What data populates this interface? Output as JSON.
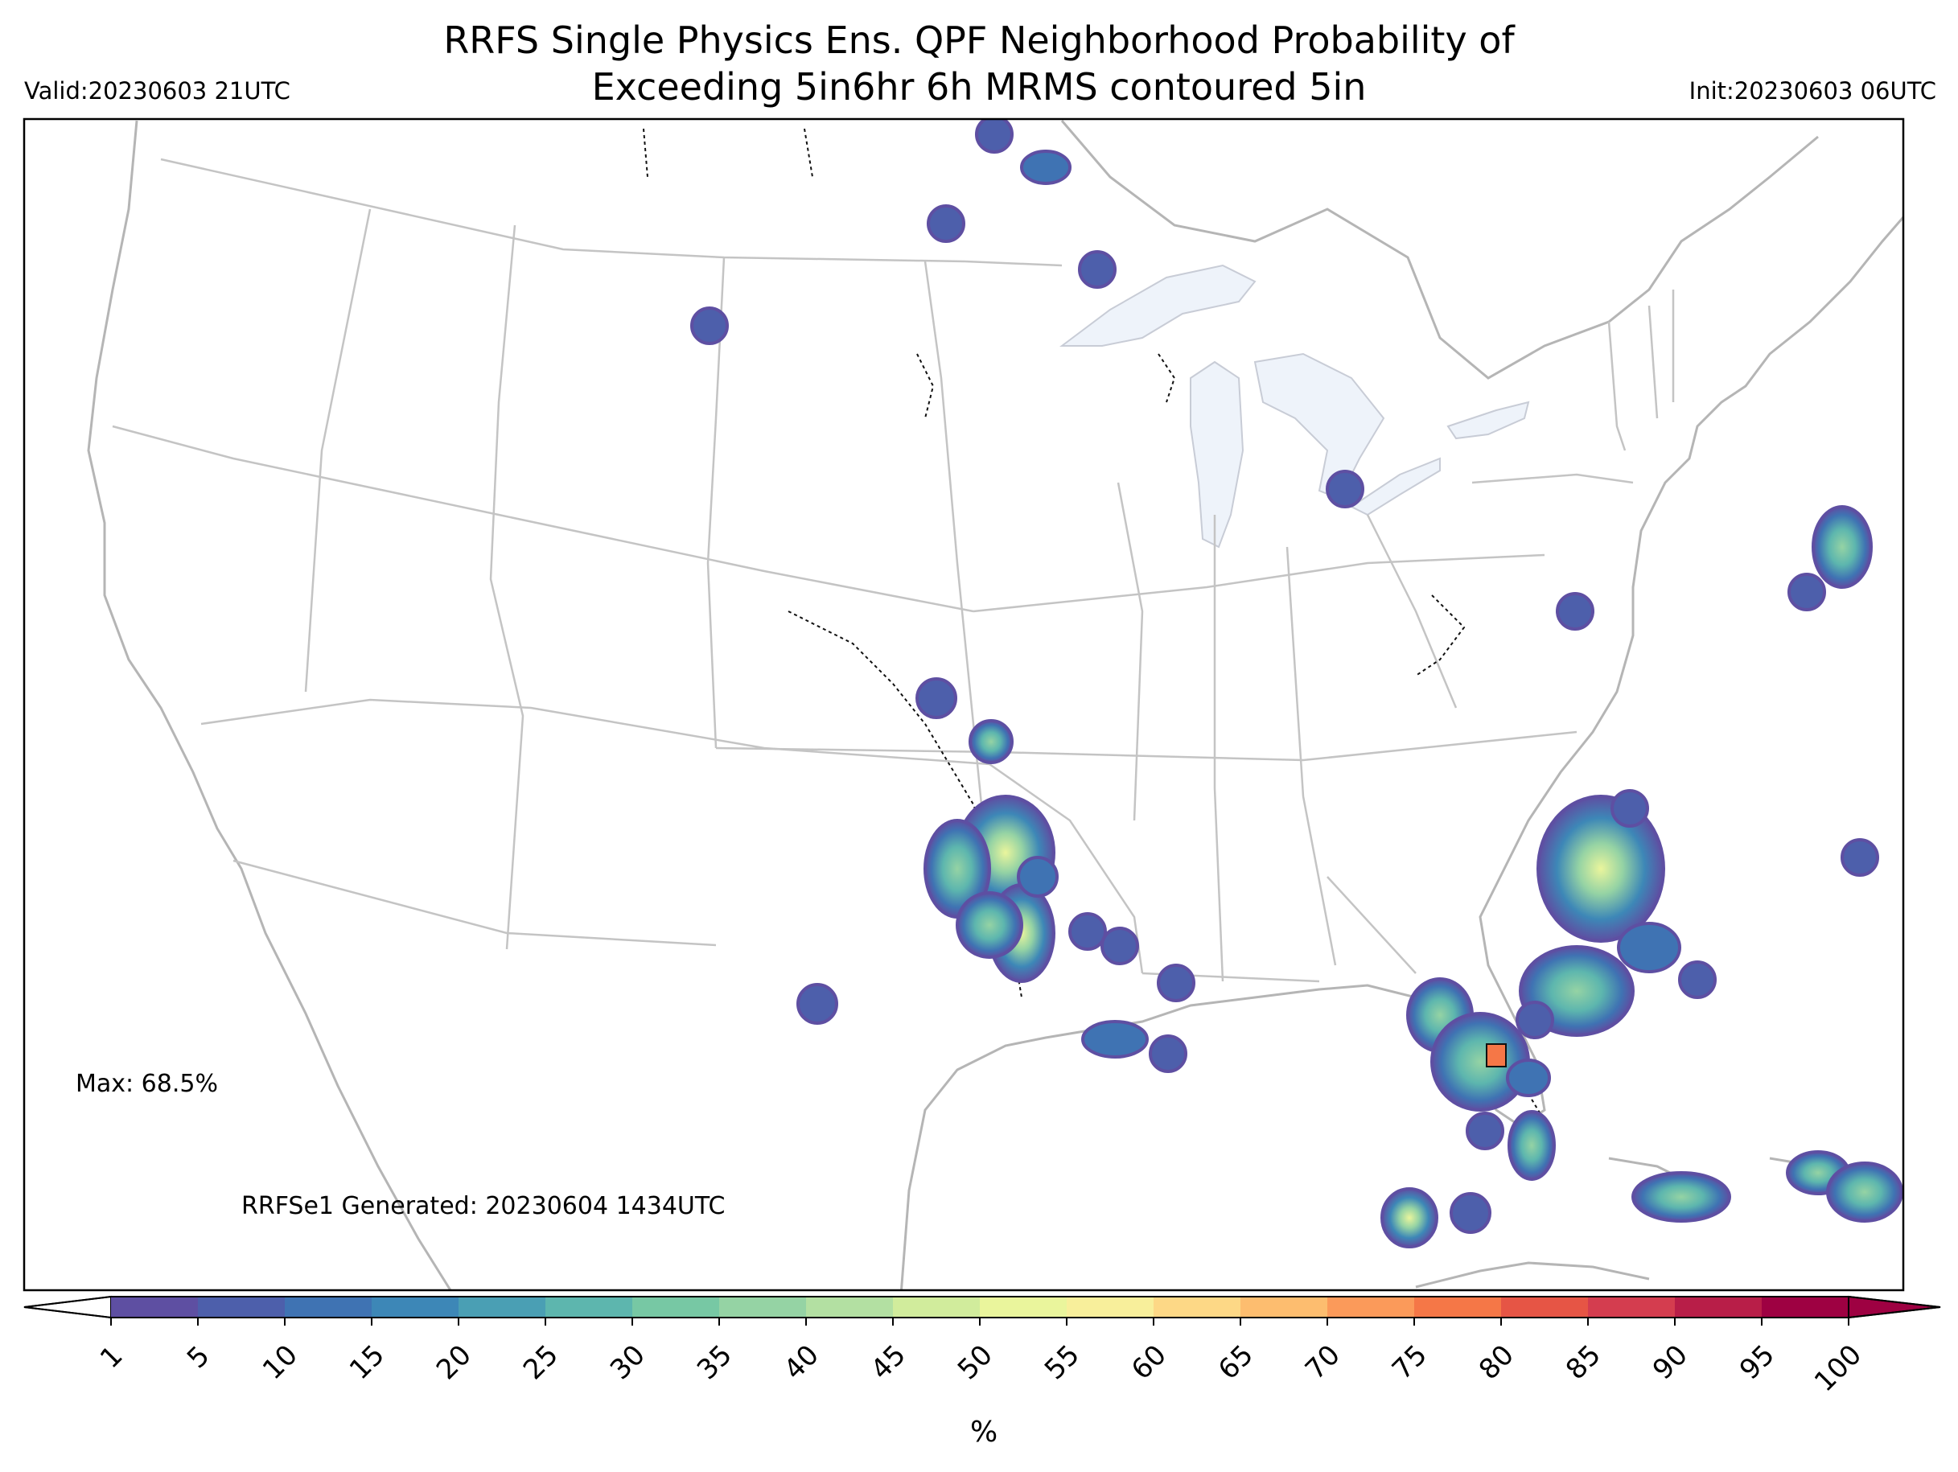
{
  "header": {
    "title_line1": "RRFS Single Physics Ens. QPF Neighborhood Probability of",
    "title_line2": "Exceeding 5in6hr 6h MRMS contoured 5in",
    "valid": "Valid:20230603 21UTC",
    "init": "Init:20230603 06UTC"
  },
  "annotations": {
    "max": "Max: 68.5%",
    "generated": "RRFSe1 Generated: 20230604 1434UTC"
  },
  "colorbar": {
    "unit": "%",
    "ticks": [
      "1",
      "5",
      "10",
      "15",
      "20",
      "25",
      "30",
      "35",
      "40",
      "45",
      "50",
      "55",
      "60",
      "65",
      "70",
      "75",
      "80",
      "85",
      "90",
      "95",
      "100"
    ],
    "colors": [
      "#5e4fa2",
      "#4d5fab",
      "#3f73b3",
      "#3d87b7",
      "#4a9fb4",
      "#5db6ae",
      "#77c8a4",
      "#95d3a4",
      "#b3e0a2",
      "#d1ec9c",
      "#eaf59c",
      "#f8ef9b",
      "#fdd886",
      "#fdbd6f",
      "#fb9a5a",
      "#f57747",
      "#e65545",
      "#d43d4f",
      "#b81e48",
      "#9e0142"
    ]
  },
  "map": {
    "water_color": "#eef3fa",
    "boundary_color": "#bbbbbb"
  }
}
